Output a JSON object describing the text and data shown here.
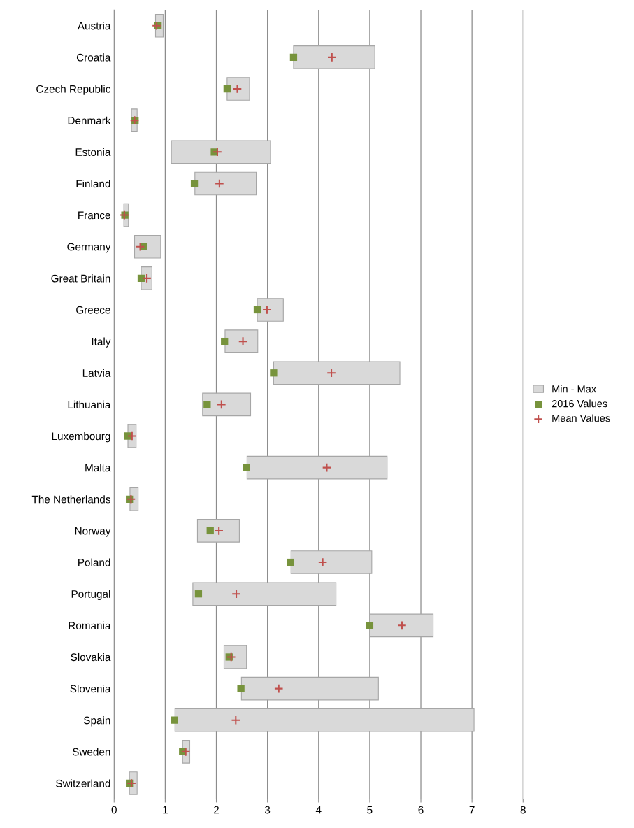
{
  "chart_data": {
    "type": "bar",
    "orientation": "horizontal",
    "categories": [
      "Austria",
      "Croatia",
      "Czech Republic",
      "Denmark",
      "Estonia",
      "Finland",
      "France",
      "Germany",
      "Great Britain",
      "Greece",
      "Italy",
      "Latvia",
      "Lithuania",
      "Luxembourg",
      "Malta",
      "The Netherlands",
      "Norway",
      "Poland",
      "Portugal",
      "Romania",
      "Slovakia",
      "Slovenia",
      "Spain",
      "Sweden",
      "Switzerland"
    ],
    "series": [
      {
        "name": "Min - Max",
        "color": "#d9d9d9",
        "base": [
          0.81,
          3.51,
          2.21,
          0.34,
          1.12,
          1.58,
          0.19,
          0.4,
          0.53,
          2.8,
          2.17,
          3.12,
          1.73,
          0.27,
          2.6,
          0.31,
          1.63,
          3.46,
          1.54,
          5.0,
          2.15,
          2.49,
          1.19,
          1.34,
          0.3
        ],
        "values": [
          0.15,
          1.59,
          0.44,
          0.11,
          1.94,
          1.2,
          0.09,
          0.51,
          0.21,
          0.51,
          0.64,
          2.47,
          0.94,
          0.16,
          2.74,
          0.16,
          0.82,
          1.58,
          2.8,
          1.24,
          0.44,
          2.68,
          5.85,
          0.14,
          0.15
        ]
      },
      {
        "name": "2016 Values",
        "type": "scatter",
        "marker": "square",
        "color": "#77933c",
        "values": [
          0.86,
          3.51,
          2.21,
          0.41,
          1.96,
          1.57,
          0.21,
          0.58,
          0.53,
          2.8,
          2.16,
          3.12,
          1.82,
          0.26,
          2.59,
          0.3,
          1.88,
          3.45,
          1.65,
          5.0,
          2.25,
          2.48,
          1.18,
          1.34,
          0.3
        ]
      },
      {
        "name": "Mean Values",
        "type": "scatter",
        "marker": "cross",
        "color": "#c0504d",
        "values": [
          0.83,
          4.26,
          2.41,
          0.4,
          2.02,
          2.06,
          0.2,
          0.51,
          0.64,
          2.99,
          2.52,
          4.25,
          2.1,
          0.35,
          4.16,
          0.33,
          2.05,
          4.08,
          2.39,
          5.63,
          2.29,
          3.22,
          2.38,
          1.4,
          0.34
        ]
      }
    ],
    "xlim": [
      0,
      8
    ],
    "xticks": [
      0,
      1,
      2,
      3,
      4,
      5,
      6,
      7,
      8
    ],
    "grid": "x",
    "legend": "right"
  }
}
